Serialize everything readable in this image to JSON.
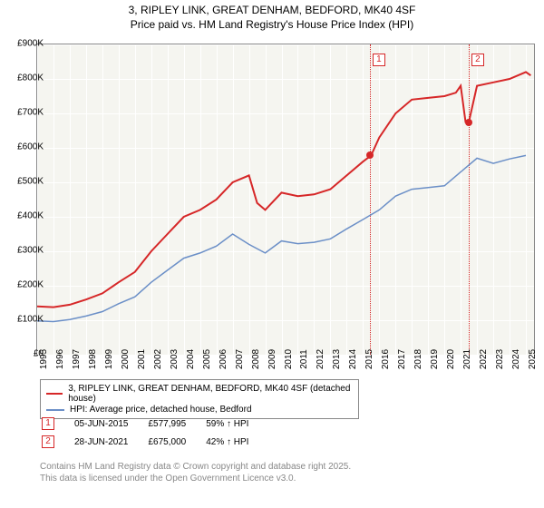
{
  "title_line1": "3, RIPLEY LINK, GREAT DENHAM, BEDFORD, MK40 4SF",
  "title_line2": "Price paid vs. HM Land Registry's House Price Index (HPI)",
  "chart": {
    "type": "line",
    "background_color": "#f5f5f0",
    "grid_color": "#ffffff",
    "xlim": [
      1995,
      2025.5
    ],
    "ylim": [
      0,
      900000
    ],
    "ytick_step": 100000,
    "yticks": [
      "£0",
      "£100K",
      "£200K",
      "£300K",
      "£400K",
      "£500K",
      "£600K",
      "£700K",
      "£800K",
      "£900K"
    ],
    "xticks": [
      "1995",
      "1996",
      "1997",
      "1998",
      "1999",
      "2000",
      "2001",
      "2002",
      "2003",
      "2004",
      "2005",
      "2006",
      "2007",
      "2008",
      "2009",
      "2010",
      "2011",
      "2012",
      "2013",
      "2014",
      "2015",
      "2016",
      "2017",
      "2018",
      "2019",
      "2020",
      "2021",
      "2022",
      "2023",
      "2024",
      "2025"
    ],
    "series": [
      {
        "name": "3, RIPLEY LINK, GREAT DENHAM, BEDFORD, MK40 4SF (detached house)",
        "color": "#d62728",
        "line_width": 2,
        "data": [
          [
            1995,
            140000
          ],
          [
            1996,
            138000
          ],
          [
            1997,
            145000
          ],
          [
            1998,
            160000
          ],
          [
            1999,
            178000
          ],
          [
            2000,
            210000
          ],
          [
            2001,
            240000
          ],
          [
            2002,
            300000
          ],
          [
            2003,
            350000
          ],
          [
            2004,
            400000
          ],
          [
            2005,
            420000
          ],
          [
            2006,
            450000
          ],
          [
            2007,
            500000
          ],
          [
            2008,
            520000
          ],
          [
            2008.5,
            440000
          ],
          [
            2009,
            420000
          ],
          [
            2010,
            470000
          ],
          [
            2011,
            460000
          ],
          [
            2012,
            465000
          ],
          [
            2013,
            480000
          ],
          [
            2014,
            520000
          ],
          [
            2015,
            560000
          ],
          [
            2015.5,
            577995
          ],
          [
            2016,
            630000
          ],
          [
            2017,
            700000
          ],
          [
            2018,
            740000
          ],
          [
            2019,
            745000
          ],
          [
            2020,
            750000
          ],
          [
            2020.7,
            760000
          ],
          [
            2021,
            780000
          ],
          [
            2021.3,
            675000
          ],
          [
            2021.5,
            675000
          ],
          [
            2022,
            780000
          ],
          [
            2023,
            790000
          ],
          [
            2024,
            800000
          ],
          [
            2025,
            820000
          ],
          [
            2025.3,
            810000
          ]
        ]
      },
      {
        "name": "HPI: Average price, detached house, Bedford",
        "color": "#6b8fc7",
        "line_width": 1.5,
        "data": [
          [
            1995,
            98000
          ],
          [
            1996,
            96000
          ],
          [
            1997,
            102000
          ],
          [
            1998,
            112000
          ],
          [
            1999,
            125000
          ],
          [
            2000,
            148000
          ],
          [
            2001,
            168000
          ],
          [
            2002,
            210000
          ],
          [
            2003,
            245000
          ],
          [
            2004,
            280000
          ],
          [
            2005,
            295000
          ],
          [
            2006,
            315000
          ],
          [
            2007,
            350000
          ],
          [
            2008,
            320000
          ],
          [
            2009,
            295000
          ],
          [
            2010,
            330000
          ],
          [
            2011,
            322000
          ],
          [
            2012,
            326000
          ],
          [
            2013,
            336000
          ],
          [
            2014,
            365000
          ],
          [
            2015,
            392000
          ],
          [
            2016,
            420000
          ],
          [
            2017,
            460000
          ],
          [
            2018,
            480000
          ],
          [
            2019,
            485000
          ],
          [
            2020,
            490000
          ],
          [
            2021,
            530000
          ],
          [
            2022,
            570000
          ],
          [
            2023,
            555000
          ],
          [
            2024,
            568000
          ],
          [
            2025,
            578000
          ]
        ]
      }
    ],
    "points": [
      {
        "x": 2015.42,
        "y": 577995,
        "color": "#d62728"
      },
      {
        "x": 2021.49,
        "y": 675000,
        "color": "#d62728"
      }
    ],
    "markers": [
      {
        "badge": "1",
        "x": 2015.42,
        "color": "#d62728",
        "date": "05-JUN-2015",
        "price": "£577,995",
        "hpi": "59% ↑ HPI"
      },
      {
        "badge": "2",
        "x": 2021.49,
        "color": "#d62728",
        "date": "28-JUN-2021",
        "price": "£675,000",
        "hpi": "42% ↑ HPI"
      }
    ]
  },
  "footer_line1": "Contains HM Land Registry data © Crown copyright and database right 2025.",
  "footer_line2": "This data is licensed under the Open Government Licence v3.0."
}
